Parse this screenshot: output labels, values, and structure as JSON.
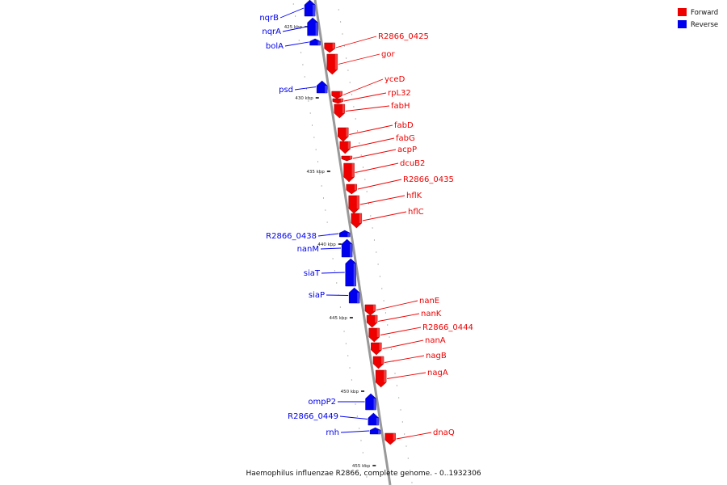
{
  "caption": "Haemophilus influenzae R2866, complete genome. - 0..1932306",
  "legend": [
    {
      "label": "Forward",
      "color": "#ee0000"
    },
    {
      "label": "Reverse",
      "color": "#0000ee"
    }
  ],
  "colors": {
    "forward": "#ee0000",
    "reverse": "#0000ee",
    "backbone": "#999999"
  },
  "scale_labels": [
    "425 kbp",
    "430 kbp",
    "435 kbp",
    "440 kbp",
    "445 kbp",
    "450 kbp",
    "455 kbp"
  ],
  "genes": [
    {
      "name": "nqrB",
      "strand": "reverse"
    },
    {
      "name": "nqrA",
      "strand": "reverse"
    },
    {
      "name": "bolA",
      "strand": "reverse"
    },
    {
      "name": "R2866_0425",
      "strand": "forward"
    },
    {
      "name": "gor",
      "strand": "forward"
    },
    {
      "name": "psd",
      "strand": "reverse"
    },
    {
      "name": "yceD",
      "strand": "forward"
    },
    {
      "name": "rpL32",
      "strand": "forward"
    },
    {
      "name": "fabH",
      "strand": "forward"
    },
    {
      "name": "fabD",
      "strand": "forward"
    },
    {
      "name": "fabG",
      "strand": "forward"
    },
    {
      "name": "acpP",
      "strand": "forward"
    },
    {
      "name": "dcuB2",
      "strand": "forward"
    },
    {
      "name": "R2866_0435",
      "strand": "forward"
    },
    {
      "name": "hflK",
      "strand": "forward"
    },
    {
      "name": "hflC",
      "strand": "forward"
    },
    {
      "name": "R2866_0438",
      "strand": "reverse"
    },
    {
      "name": "nanM",
      "strand": "reverse"
    },
    {
      "name": "siaT",
      "strand": "reverse"
    },
    {
      "name": "siaP",
      "strand": "reverse"
    },
    {
      "name": "nanE",
      "strand": "forward"
    },
    {
      "name": "nanK",
      "strand": "forward"
    },
    {
      "name": "R2866_0444",
      "strand": "forward"
    },
    {
      "name": "nanA",
      "strand": "forward"
    },
    {
      "name": "nagB",
      "strand": "forward"
    },
    {
      "name": "nagA",
      "strand": "forward"
    },
    {
      "name": "ompP2",
      "strand": "reverse"
    },
    {
      "name": "R2866_0449",
      "strand": "reverse"
    },
    {
      "name": "rnh",
      "strand": "reverse"
    },
    {
      "name": "dnaQ",
      "strand": "forward"
    }
  ]
}
